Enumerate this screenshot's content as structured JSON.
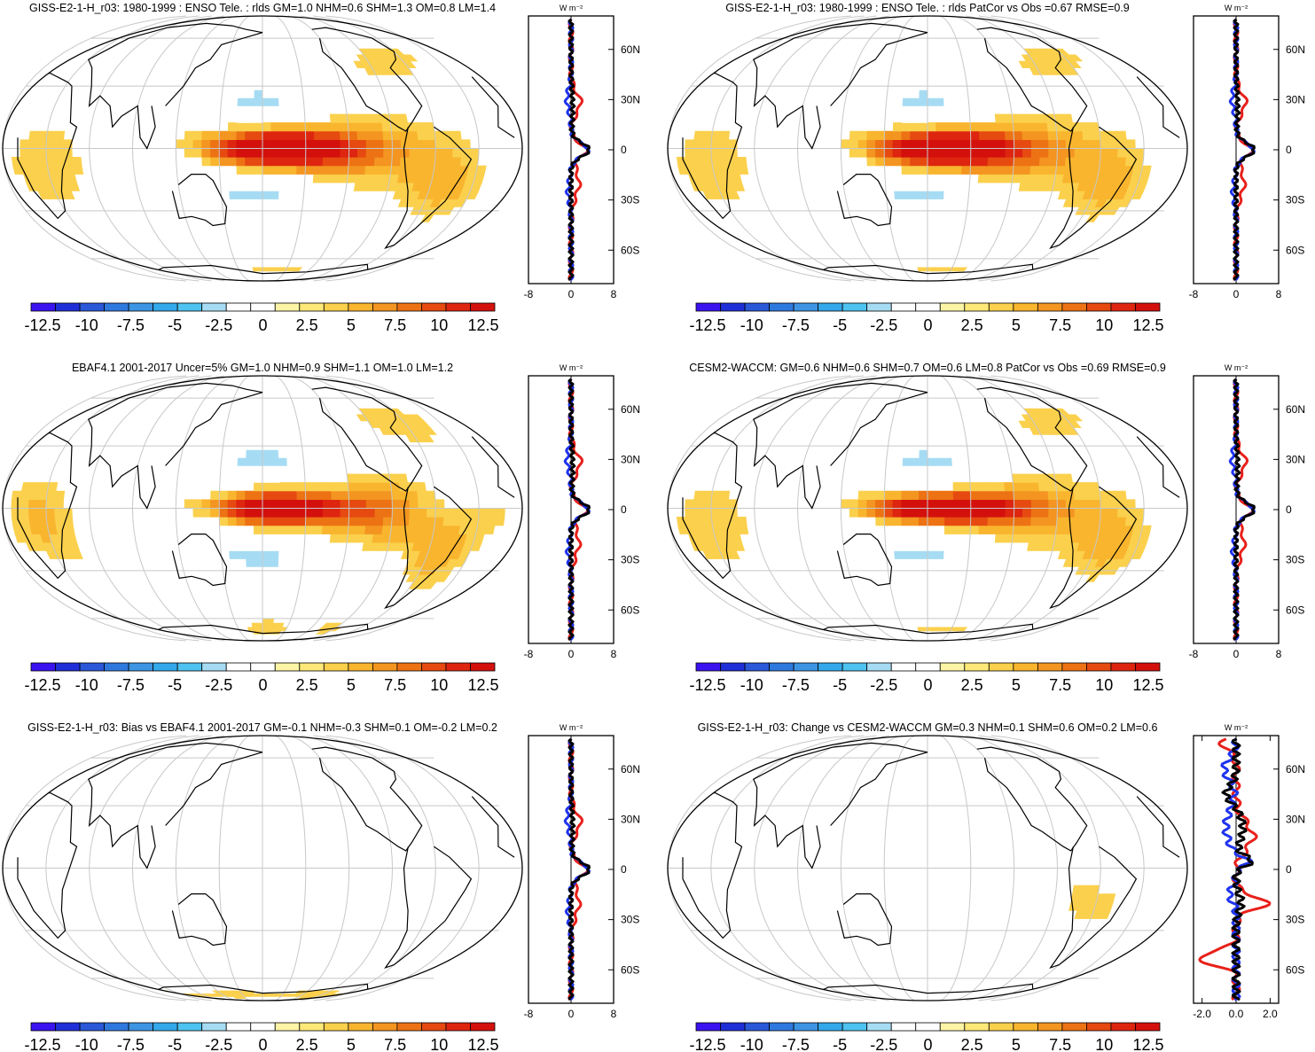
{
  "chart_data": [
    {
      "id": "p1",
      "type": "heatmap",
      "title": "GISS-E2-1-H_r03: 1980-1999 : ENSO Tele. : rlds GM=1.0 NHM=0.6 SHM=1.3 OM=0.8 LM=1.4",
      "variant": "model",
      "zonal": {
        "unit": "W m⁻²",
        "xlim": [
          -8,
          8
        ],
        "xticks": [
          "-8",
          "0",
          "8"
        ],
        "lat_ticks": [
          "60N",
          "30N",
          "0",
          "30S",
          "60S"
        ],
        "series": [
          "red",
          "blue",
          "black"
        ]
      }
    },
    {
      "id": "p2",
      "type": "heatmap",
      "title": "GISS-E2-1-H_r03: 1980-1999 : ENSO Tele. : rlds PatCor vs Obs =0.67 RMSE=0.9",
      "variant": "model",
      "zonal": {
        "unit": "W m⁻²",
        "xlim": [
          -8,
          8
        ],
        "xticks": [
          "-8",
          "0",
          "8"
        ],
        "lat_ticks": [
          "60N",
          "30N",
          "0",
          "30S",
          "60S"
        ],
        "series": [
          "red",
          "blue",
          "black"
        ]
      }
    },
    {
      "id": "p3",
      "type": "heatmap",
      "title": "EBAF4.1 2001-2017 Uncer=5% GM=1.0 NHM=0.9 SHM=1.1 OM=1.0 LM=1.2",
      "variant": "obs",
      "zonal": {
        "unit": "W m⁻²",
        "xlim": [
          -8,
          8
        ],
        "xticks": [
          "-8",
          "0",
          "8"
        ],
        "lat_ticks": [
          "60N",
          "30N",
          "0",
          "30S",
          "60S"
        ],
        "series": [
          "red",
          "blue",
          "black"
        ]
      }
    },
    {
      "id": "p4",
      "type": "heatmap",
      "title": "CESM2-WACCM: GM=0.6 NHM=0.6 SHM=0.7 OM=0.6 LM=0.8 PatCor vs Obs =0.69 RMSE=0.9",
      "variant": "cesm",
      "zonal": {
        "unit": "W m⁻²",
        "xlim": [
          -8,
          8
        ],
        "xticks": [
          "-8",
          "0",
          "8"
        ],
        "lat_ticks": [
          "60N",
          "30N",
          "0",
          "30S",
          "60S"
        ],
        "series": [
          "red",
          "blue",
          "black"
        ]
      }
    },
    {
      "id": "p5",
      "type": "heatmap",
      "title": "GISS-E2-1-H_r03: Bias vs EBAF4.1 2001-2017 GM=-0.1 NHM=-0.3 SHM=0.1 OM=-0.2 LM=0.2",
      "variant": "bias",
      "zonal": {
        "unit": "W m⁻²",
        "xlim": [
          -8,
          8
        ],
        "xticks": [
          "-8",
          "0",
          "8"
        ],
        "lat_ticks": [
          "60N",
          "30N",
          "0",
          "30S",
          "60S"
        ],
        "series": [
          "red",
          "blue",
          "black"
        ]
      }
    },
    {
      "id": "p6",
      "type": "heatmap",
      "title": "GISS-E2-1-H_r03: Change vs CESM2-WACCM GM=0.3 NHM=0.1 SHM=0.6 OM=0.2 LM=0.6",
      "variant": "change",
      "zonal": {
        "unit": "W m⁻²",
        "xlim": [
          -2.5,
          2.5
        ],
        "xticks": [
          "-2.0",
          "0.0",
          "2.0"
        ],
        "lat_ticks": [
          "60N",
          "30N",
          "0",
          "30S",
          "60S"
        ],
        "series": [
          "red",
          "blue",
          "black"
        ]
      }
    }
  ],
  "colorbar": {
    "labels": [
      "-12.5",
      "-10",
      "-7.5",
      "-5",
      "-2.5",
      "0",
      "2.5",
      "5",
      "7.5",
      "10",
      "12.5"
    ],
    "colors": [
      "#3a13f0",
      "#1f2fd8",
      "#2a58d8",
      "#2f79de",
      "#3d94e3",
      "#33a8ea",
      "#4ec2f0",
      "#a6dcf3",
      "#ffffff",
      "#ffffff",
      "#fdf4a6",
      "#fde878",
      "#fbd04c",
      "#f9b52e",
      "#f39520",
      "#ed7214",
      "#e64a10",
      "#de2510",
      "#d4100d"
    ]
  },
  "colors": {
    "red": "#e8201a",
    "blue": "#1f33ee",
    "black": "#000000"
  }
}
